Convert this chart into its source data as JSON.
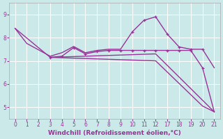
{
  "xlabel": "Windchill (Refroidissement éolien,°C)",
  "bg_color": "#cce9e9",
  "line_color": "#993399",
  "grid_color": "#ffffff",
  "xlim": [
    -0.5,
    21.5
  ],
  "ylim": [
    4.5,
    9.5
  ],
  "yticks": [
    5,
    6,
    7,
    8,
    9
  ],
  "xtick_labels": [
    "0",
    "1",
    "2",
    "3",
    "4",
    "5",
    "6",
    "7",
    "8",
    "9",
    "10",
    "11",
    "12",
    "17",
    "18",
    "19",
    "20",
    "21"
  ],
  "xtick_pos": [
    0,
    1,
    2,
    3,
    4,
    5,
    6,
    7,
    8,
    9,
    10,
    11,
    12,
    13,
    14,
    15,
    16,
    17
  ],
  "line1_x": [
    0,
    1,
    3,
    4,
    5,
    6,
    7,
    8,
    9,
    10,
    11,
    12,
    13,
    14,
    15,
    16,
    17
  ],
  "line1_y": [
    8.4,
    7.75,
    7.2,
    7.35,
    7.62,
    7.35,
    7.45,
    7.5,
    7.5,
    8.25,
    8.75,
    8.9,
    8.15,
    7.6,
    7.5,
    7.5,
    6.7
  ],
  "line1_markers": [
    10,
    11,
    12,
    13,
    14,
    15,
    16
  ],
  "line1_my": [
    8.25,
    8.75,
    8.9,
    8.15,
    7.6,
    7.5,
    7.5
  ],
  "line2_x": [
    3,
    4,
    5,
    6,
    7,
    8,
    9,
    10,
    11,
    12,
    13,
    14,
    15,
    16,
    17
  ],
  "line2_y": [
    7.15,
    7.2,
    7.57,
    7.3,
    7.4,
    7.45,
    7.45,
    7.45,
    7.45,
    7.45,
    7.45,
    7.45,
    7.45,
    6.7,
    4.8
  ],
  "line2_markers_x": [
    3,
    4,
    5,
    6,
    7,
    8,
    9,
    10,
    11,
    12,
    13,
    14,
    15,
    16
  ],
  "line2_markers_y": [
    7.15,
    7.2,
    7.57,
    7.3,
    7.4,
    7.45,
    7.45,
    7.45,
    7.45,
    7.45,
    7.45,
    7.45,
    7.45,
    6.7
  ],
  "line3_x": [
    3,
    12,
    17
  ],
  "line3_y": [
    7.15,
    7.3,
    4.8
  ],
  "line4_x": [
    0,
    3,
    12,
    16,
    17
  ],
  "line4_y": [
    8.4,
    7.15,
    7.0,
    5.05,
    4.8
  ]
}
